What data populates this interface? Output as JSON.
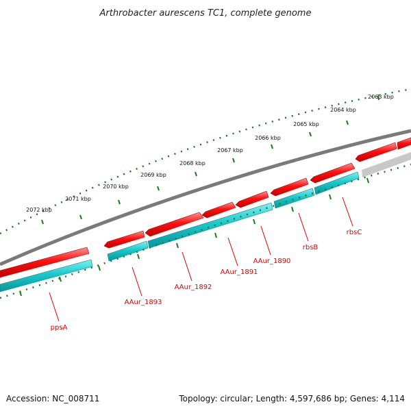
{
  "title": "Arthrobacter aurescens TC1, complete genome",
  "footer": {
    "accession": "Accession: NC_008711",
    "topology": "Topology: circular; Length: 4,597,686 bp; Genes: 4,114"
  },
  "kbp_labels": [
    "2063 kbp",
    "2064 kbp",
    "2065 kbp",
    "2066 kbp",
    "2067 kbp",
    "2068 kbp",
    "2069 kbp",
    "2070 kbp",
    "2071 kbp",
    "2072 kbp"
  ],
  "gene_labels": [
    "rbsC",
    "rbsB",
    "AAur_1890",
    "AAur_1891",
    "AAur_1892",
    "AAur_1893",
    "ppsA"
  ],
  "colors": {
    "forward_strand": "#ee0000",
    "reverse_strand": "#16c8cc",
    "backbone": "#7a7a7a",
    "ticks": "#1a7a1a",
    "gene_label": "#e00000"
  }
}
